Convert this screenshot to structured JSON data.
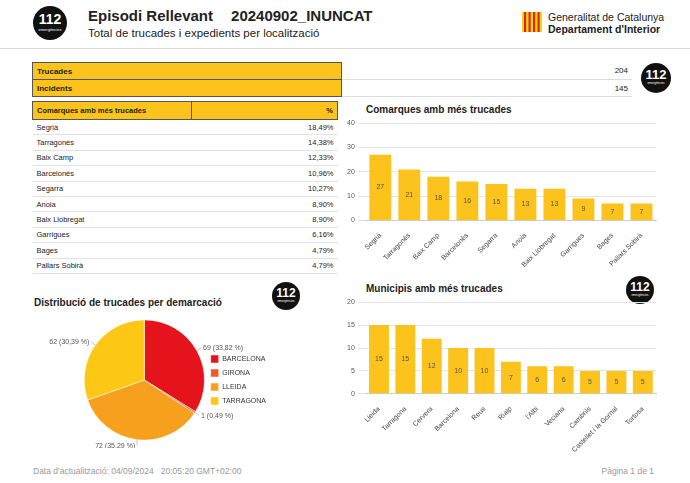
{
  "header": {
    "title": "Episodi Rellevant",
    "code": "20240902_INUNCAT",
    "subtitle": "Total de trucades i expedients per localització",
    "organization": "Generalitat de Catalunya",
    "department": "Departament d'Interior",
    "logo": "112",
    "logo_sub": "emergències"
  },
  "summary": {
    "rows": [
      [
        "Trucades",
        204
      ],
      [
        "Incidents",
        145
      ]
    ]
  },
  "table": {
    "header": [
      "Comarques amb més trucades",
      "%"
    ],
    "rows": [
      [
        "Segrià",
        "18,49%"
      ],
      [
        "Tarragonès",
        "14,38%"
      ],
      [
        "Baix Camp",
        "12,33%"
      ],
      [
        "Barcelonès",
        "10,96%"
      ],
      [
        "Segarra",
        "10,27%"
      ],
      [
        "Anoia",
        "8,90%"
      ],
      [
        "Baix Llobregat",
        "8,90%"
      ],
      [
        "Garrigues",
        "6,16%"
      ],
      [
        "Bages",
        "4,79%"
      ],
      [
        "Pallars Sobirà",
        "4,79%"
      ]
    ]
  },
  "chart_data": [
    {
      "type": "bar",
      "title": "Comarques amb més trucades",
      "categories": [
        "Segrià",
        "Tarragonès",
        "Baix Camp",
        "Barcelonès",
        "Segarra",
        "Anoia",
        "Baix Llobregat",
        "Garrigues",
        "Bages",
        "Pallars Sobirà"
      ],
      "values": [
        27,
        21,
        18,
        16,
        15,
        13,
        13,
        9,
        7,
        7
      ],
      "color": "#fbc31b",
      "ylim": [
        0,
        40
      ],
      "yticks": [
        0,
        10,
        20,
        30,
        40
      ],
      "grid": true,
      "data_labels": true
    },
    {
      "type": "pie",
      "title": "Distribució de trucades per demarcació",
      "categories": [
        "BARCELONA",
        "GIRONA",
        "LLEIDA",
        "TARRAGONA"
      ],
      "values": [
        69,
        1,
        72,
        62
      ],
      "value_labels": [
        "69 (33,82 %)",
        "1 (0,49 %)",
        "72 (35,29 %)",
        "62 (30,39 %)"
      ],
      "colors": [
        "#e5131b",
        "#f05a28",
        "#f7a01e",
        "#fcc815"
      ],
      "legend": "right",
      "data_labels": true
    },
    {
      "type": "bar",
      "title": "Municipis amb més trucades",
      "categories": [
        "Lleida",
        "Tarragona",
        "Cervera",
        "Barcelona",
        "Reus",
        "Rialp",
        "l'Albi",
        "Veciana",
        "Cambrils",
        "Castellet i la Gornal",
        "Tortosa"
      ],
      "values": [
        15,
        15,
        12,
        10,
        10,
        7,
        6,
        6,
        5,
        5,
        5
      ],
      "color": "#fbc31b",
      "ylim": [
        0,
        20
      ],
      "yticks": [
        0,
        5,
        10,
        15,
        20
      ],
      "grid": true,
      "data_labels": true
    }
  ],
  "footer": {
    "updated": "Data d'actualització: 04/09/2024   20:05:20 GMT+02:00",
    "page": "Pàgina 1 de 1"
  }
}
